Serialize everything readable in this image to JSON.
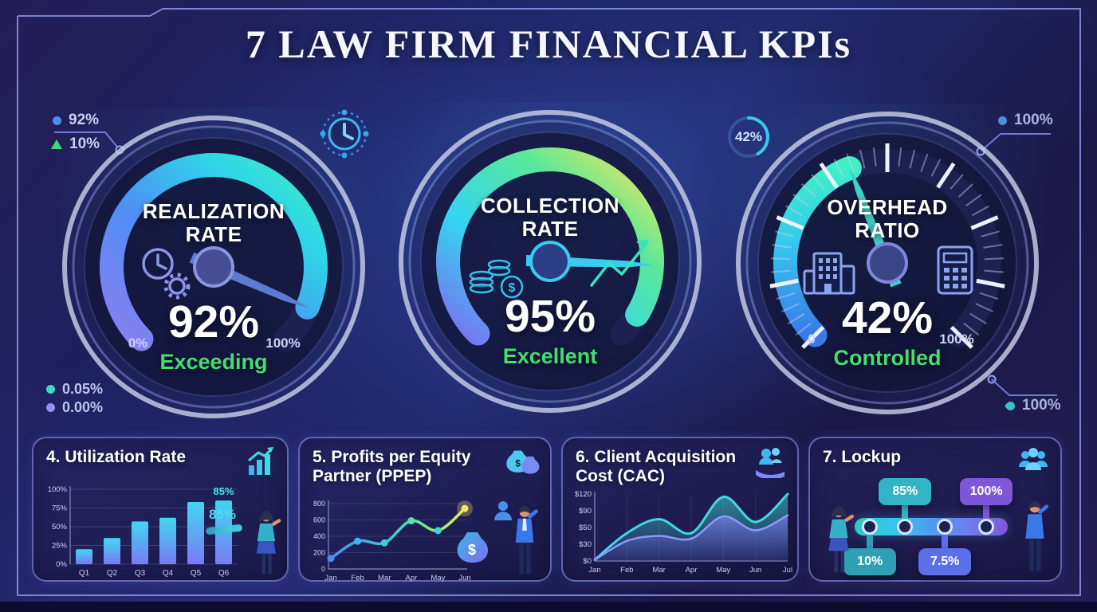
{
  "page": {
    "title": "7 LAW FIRM FINANCIAL KPIs"
  },
  "gauges": [
    {
      "title_line1": "REALIZATION",
      "title_line2": "RATE",
      "value_label": "92%",
      "status": "Exceeding",
      "scale_min": "0%",
      "scale_max": "100%",
      "icons": [
        "clock-icon",
        "gear-icon"
      ]
    },
    {
      "title_line1": "COLLECTION",
      "title_line2": "RATE",
      "value_label": "95%",
      "status": "Excellent",
      "scale_min": "",
      "scale_max": "",
      "icons": [
        "coins-icon",
        "growth-arrow-icon"
      ]
    },
    {
      "title_line1": "OVERHEAD",
      "title_line2": "RATIO",
      "value_label": "42%",
      "status": "Controlled",
      "scale_min": "0",
      "scale_max": "100%",
      "icons": [
        "building-icon",
        "calculator-icon"
      ]
    }
  ],
  "callouts": {
    "top_left": [
      {
        "label": "92%"
      },
      {
        "label": "10%"
      }
    ],
    "bottom_left": [
      {
        "label": "0.05%"
      },
      {
        "label": "0.00%"
      }
    ],
    "top_right": {
      "label": "100%"
    },
    "bottom_right": {
      "label": "100%"
    },
    "ring_badge": {
      "label": "42%"
    }
  },
  "panels": {
    "utilization": {
      "title": "4. Utilization Rate",
      "side_label": "85%"
    },
    "ppep": {
      "title": "5. Profits per Equity Partner (PPEP)"
    },
    "cac": {
      "title": "6. Client Acquisition Cost (CAC)"
    },
    "lockup": {
      "title": "7. Lockup"
    }
  },
  "chart_data": [
    {
      "type": "gauge",
      "title": "Realization Rate",
      "value": 92,
      "unit": "%",
      "status": "Exceeding",
      "range": [
        0,
        100
      ],
      "scale_labels": [
        "0%",
        "100%"
      ]
    },
    {
      "type": "gauge",
      "title": "Collection Rate",
      "value": 95,
      "unit": "%",
      "status": "Excellent",
      "range": [
        0,
        100
      ],
      "scale_labels": []
    },
    {
      "type": "gauge",
      "title": "Overhead Ratio",
      "value": 42,
      "unit": "%",
      "status": "Controlled",
      "range": [
        0,
        100
      ],
      "scale_labels": [
        "0",
        "100%"
      ]
    },
    {
      "type": "bar",
      "title": "4. Utilization Rate",
      "categories": [
        "Q1",
        "Q2",
        "Q3",
        "Q4",
        "Q5",
        "Q6"
      ],
      "values": [
        20,
        35,
        57,
        62,
        83,
        85
      ],
      "yticks": [
        "0%",
        "25%",
        "50%",
        "75%",
        "100%"
      ],
      "ylim": [
        0,
        100
      ],
      "annotation": "85%"
    },
    {
      "type": "line",
      "title": "5. Profits per Equity Partner (PPEP)",
      "x": [
        "Jan",
        "Feb",
        "Mar",
        "Apr",
        "May",
        "Jun"
      ],
      "values": [
        130,
        340,
        320,
        590,
        470,
        740
      ],
      "yticks": [
        "0",
        "200",
        "400",
        "600",
        "800"
      ],
      "ylim": [
        0,
        800
      ]
    },
    {
      "type": "area",
      "title": "6. Client Acquisition Cost (CAC)",
      "x": [
        "Jan",
        "Feb",
        "Mar",
        "Apr",
        "May",
        "Jun",
        "Jul"
      ],
      "series": [
        {
          "name": "cac-upper",
          "values": [
            2,
            50,
            75,
            50,
            115,
            70,
            120
          ]
        },
        {
          "name": "cac-lower",
          "values": [
            2,
            36,
            45,
            40,
            80,
            55,
            82
          ]
        }
      ],
      "yticks": [
        "$0",
        "$30",
        "$50",
        "$90",
        "$120"
      ],
      "ylim": [
        0,
        120
      ]
    },
    {
      "type": "timeline",
      "title": "7. Lockup",
      "milestones": [
        {
          "label": "10%",
          "pos": 10,
          "side": "below",
          "color": "#2f9fb5"
        },
        {
          "label": "85%",
          "pos": 33,
          "side": "above",
          "color": "#33b3c6"
        },
        {
          "label": "7.5%",
          "pos": 59,
          "side": "below",
          "color": "#5b6fe8"
        },
        {
          "label": "100%",
          "pos": 86,
          "side": "above",
          "color": "#7e57d8"
        }
      ]
    }
  ]
}
